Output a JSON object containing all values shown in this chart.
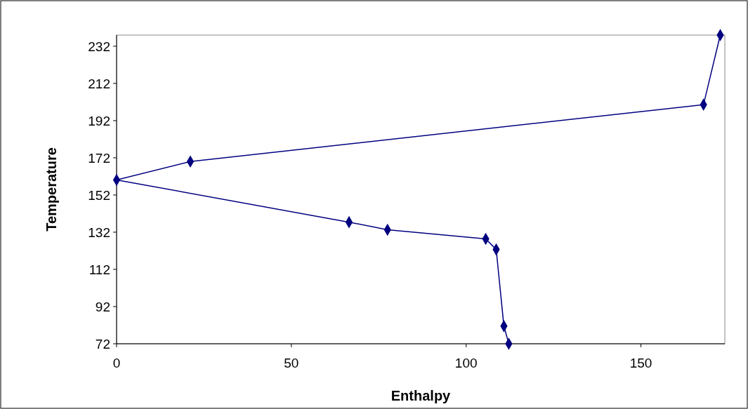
{
  "chart_data": {
    "type": "line",
    "xlabel": "Enthalpy",
    "ylabel": "Temperature",
    "x": [
      172.7,
      167.9,
      21.1,
      0,
      66.5,
      77.5,
      105.6,
      108.6,
      110.8,
      112.2
    ],
    "series": [
      {
        "color": "#000080",
        "values": [
          238,
          200.6,
          170,
          160.1,
          137.4,
          133.3,
          128.4,
          122.7,
          81.5,
          72
        ]
      }
    ],
    "xlim": [
      0,
      174
    ],
    "xticks": [
      0,
      50,
      100,
      150
    ],
    "ylim": [
      72,
      238
    ],
    "yticks": [
      72,
      92,
      112,
      132,
      152,
      172,
      192,
      212,
      232
    ],
    "grid": false,
    "marker": "diamond",
    "line_style": "solid"
  }
}
